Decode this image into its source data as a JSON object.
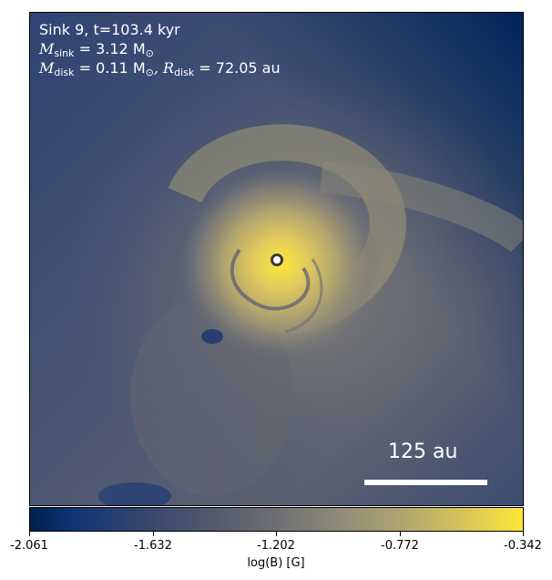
{
  "image": {
    "description_free": true,
    "colormap": "cividis",
    "colors": {
      "low": "#00204c",
      "mid": "#6e6f73",
      "high": "#fde737"
    }
  },
  "annotations": {
    "title": "Sink 9, t=103.4 kyr",
    "m_sink_label": "M",
    "m_sink_sub": "sink",
    "m_sink_value": " = 3.12 M",
    "m_sink_unit_sub": "⊙",
    "m_disk_label": "M",
    "m_disk_sub": "disk",
    "m_disk_value": " = 0.11 M",
    "m_disk_unit_sub": "⊙",
    "r_disk_label": ", R",
    "r_disk_sub": "disk",
    "r_disk_value": " = 72.05 au"
  },
  "scalebar": {
    "label": "125 au"
  },
  "colorbar": {
    "label": "log(B) [G]",
    "ticks": [
      "-2.061",
      "-1.632",
      "-1.202",
      "-0.772",
      "-0.342"
    ]
  }
}
